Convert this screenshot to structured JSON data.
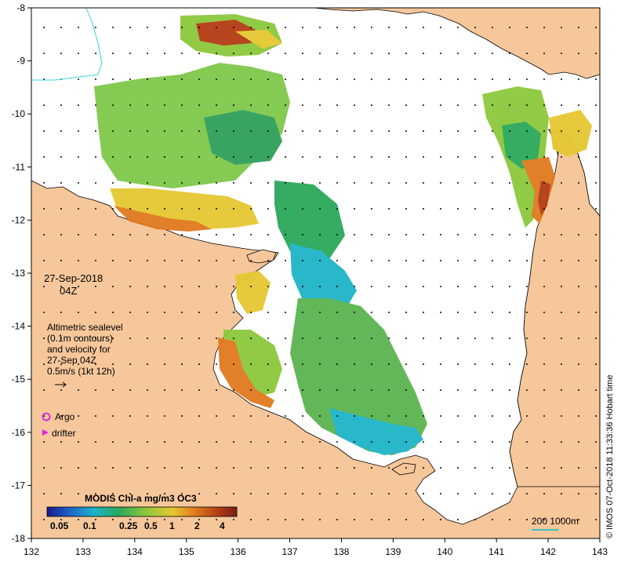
{
  "map": {
    "lon_ticks": [
      "132",
      "133",
      "134",
      "135",
      "136",
      "137",
      "138",
      "139",
      "140",
      "141",
      "142",
      "143"
    ],
    "lat_ticks": [
      "-8",
      "-9",
      "-10",
      "-11",
      "-12",
      "-13",
      "-14",
      "-15",
      "-16",
      "-17",
      "-18"
    ]
  },
  "info": {
    "date": "27-Sep-2018",
    "time": "04Z",
    "altimetry_lines": [
      "Altimetric sealevel",
      "(0.1m contours)",
      "and velocity for",
      "27-Sep 04Z",
      "0.5m/s (1kt 12h)"
    ],
    "argo_label": "Argo",
    "drifter_label": "drifter"
  },
  "legend": {
    "title": "MODIS Chl-a mg/m3 OC3",
    "ticks": [
      "0.05",
      "0.1",
      "0.25",
      "0.5",
      "1",
      "2",
      "4"
    ],
    "colors": [
      "#1a1a8c",
      "#1e64c8",
      "#1eb4c8",
      "#2aa85a",
      "#8cc83c",
      "#e6c832",
      "#e07a1e",
      "#b43c14",
      "#7a1e14"
    ]
  },
  "scale": {
    "label": "200  1000m",
    "color": "#40c0c0"
  },
  "credit": "© IMOS 07-Oct-2018 11:33:36 Hobart time",
  "colors": {
    "land": "#f6c79b",
    "sea": "#ffffff",
    "argo": "#e020e0"
  }
}
